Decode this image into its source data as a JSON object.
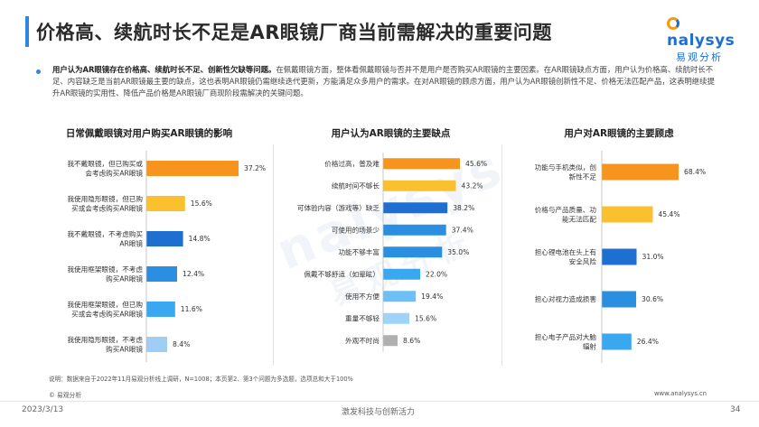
{
  "title": "价格高、续航时长不足是AR眼镜厂商当前需解决的重要问题",
  "logo": {
    "en": "nalysys",
    "cn": "易观分析"
  },
  "summary": {
    "bold": "用户认为AR眼镜存在价格高、续航时长不足、创新性欠缺等问题。",
    "text": "在佩戴眼镜方面，整体看佩戴眼镜与否并不是用户是否购买AR眼镜的主要因素。在AR眼镜缺点方面，用户认为价格高、续航时长不足、内容缺乏是当前AR眼镜最主要的缺点，这也表明AR眼镜仍需继续迭代更新，方能满足众多用户的需求。在对AR眼镜的顾虑方面，用户认为AR眼镜创新性不足、价格无法匹配产品，这表明继续提升AR眼镜的实用性、降低产品价格是AR眼镜厂商现阶段需解决的关键问题。"
  },
  "watermark": {
    "line1": "nalysys",
    "line2": "易观分析"
  },
  "chart_data": [
    {
      "type": "bar",
      "orientation": "horizontal",
      "title": "日常佩戴眼镜对用户购买AR眼镜的影响",
      "categories": [
        "我不戴眼镜，但已购买或会考虑购买AR眼镜",
        "我使用隐形眼镜，但已购买或会考虑购买AR眼镜",
        "我不戴眼镜，不考虑购买AR眼镜",
        "我使用框架眼镜，不考虑购买AR眼镜",
        "我使用框架眼镜，但已购买或会考虑购买AR眼镜",
        "我使用隐形眼镜，不考虑购买AR眼镜"
      ],
      "category_lines": [
        [
          "我不戴眼镜，但已购买或",
          "会考虑购买AR眼镜"
        ],
        [
          "我使用隐形眼镜，但已购",
          "买或会考虑购买AR眼镜"
        ],
        [
          "我不戴眼镜，不考虑购买",
          "AR眼镜"
        ],
        [
          "我使用框架眼镜，不考虑",
          "购买AR眼镜"
        ],
        [
          "我使用框架眼镜，但已购",
          "买或会考虑购买AR眼镜"
        ],
        [
          "我使用隐形眼镜，不考虑",
          "购买AR眼镜"
        ]
      ],
      "values": [
        37.2,
        15.6,
        14.8,
        12.4,
        11.6,
        8.4
      ],
      "value_labels": [
        "37.2%",
        "15.6%",
        "14.8%",
        "12.4%",
        "11.6%",
        "8.4%"
      ],
      "colors": [
        "#f7941d",
        "#fbc02d",
        "#1f6fd1",
        "#2a8fe0",
        "#3aa8f0",
        "#9fcdf3"
      ],
      "unit": "%"
    },
    {
      "type": "bar",
      "orientation": "horizontal",
      "title": "用户认为AR眼镜的主要缺点",
      "categories": [
        "价格过高，普及难",
        "续航时间不够长",
        "可体验内容（游戏等）缺乏",
        "可使用的场景少",
        "功能不够丰富",
        "佩戴不够舒适（如晕眩）",
        "使用不方便",
        "重量不够轻",
        "外观不时尚"
      ],
      "category_lines": [
        [
          "价格过高，普及难"
        ],
        [
          "续航时间不够长"
        ],
        [
          "可体验内容（游戏等）缺乏"
        ],
        [
          "可使用的场景少"
        ],
        [
          "功能不够丰富"
        ],
        [
          "佩戴不够舒适（如晕眩）"
        ],
        [
          "使用不方便"
        ],
        [
          "重量不够轻"
        ],
        [
          "外观不时尚"
        ]
      ],
      "values": [
        45.6,
        43.2,
        38.2,
        37.4,
        35.0,
        22.0,
        19.4,
        15.6,
        8.6
      ],
      "value_labels": [
        "45.6%",
        "43.2%",
        "38.2%",
        "37.4%",
        "35.0%",
        "22.0%",
        "19.4%",
        "15.6%",
        "8.6%"
      ],
      "colors": [
        "#f7941d",
        "#fbc02d",
        "#1f6fd1",
        "#2a8fe0",
        "#2a8fe0",
        "#3aa8f0",
        "#6cc0f5",
        "#9fd3f7",
        "#b0b0b0"
      ],
      "unit": "%"
    },
    {
      "type": "bar",
      "orientation": "horizontal",
      "title": "用户对AR眼镜的主要顾虑",
      "categories": [
        "功能与手机类似，创新性不足",
        "价格与产品质量、功能无法匹配",
        "担心锂电池在头上有安全风险",
        "担心对视力造成损害",
        "担心电子产品对大脑辐射"
      ],
      "category_lines": [
        [
          "功能与手机类似，创",
          "新性不足"
        ],
        [
          "价格与产品质量、功",
          "能无法匹配"
        ],
        [
          "担心锂电池在头上有",
          "安全风险"
        ],
        [
          "担心对视力造成损害"
        ],
        [
          "担心电子产品对大脑",
          "辐射"
        ]
      ],
      "values": [
        68.4,
        45.4,
        31.0,
        30.6,
        26.4
      ],
      "value_labels": [
        "68.4%",
        "45.4%",
        "31.0%",
        "30.6%",
        "26.4%"
      ],
      "colors": [
        "#f7941d",
        "#fbc02d",
        "#1f6fd1",
        "#2a8fe0",
        "#3aa8f0"
      ],
      "unit": "%"
    }
  ],
  "footnote": "说明：数据来自于2022年11月易观分析线上调研，N=1008；本页第2、第3个问题为多选题，选项总和大于100%",
  "copyright": "© 易观分析",
  "website": "www.analysys.cn",
  "date": "2023/3/13",
  "slogan": "激发科技与创新活力",
  "page_number": "34"
}
